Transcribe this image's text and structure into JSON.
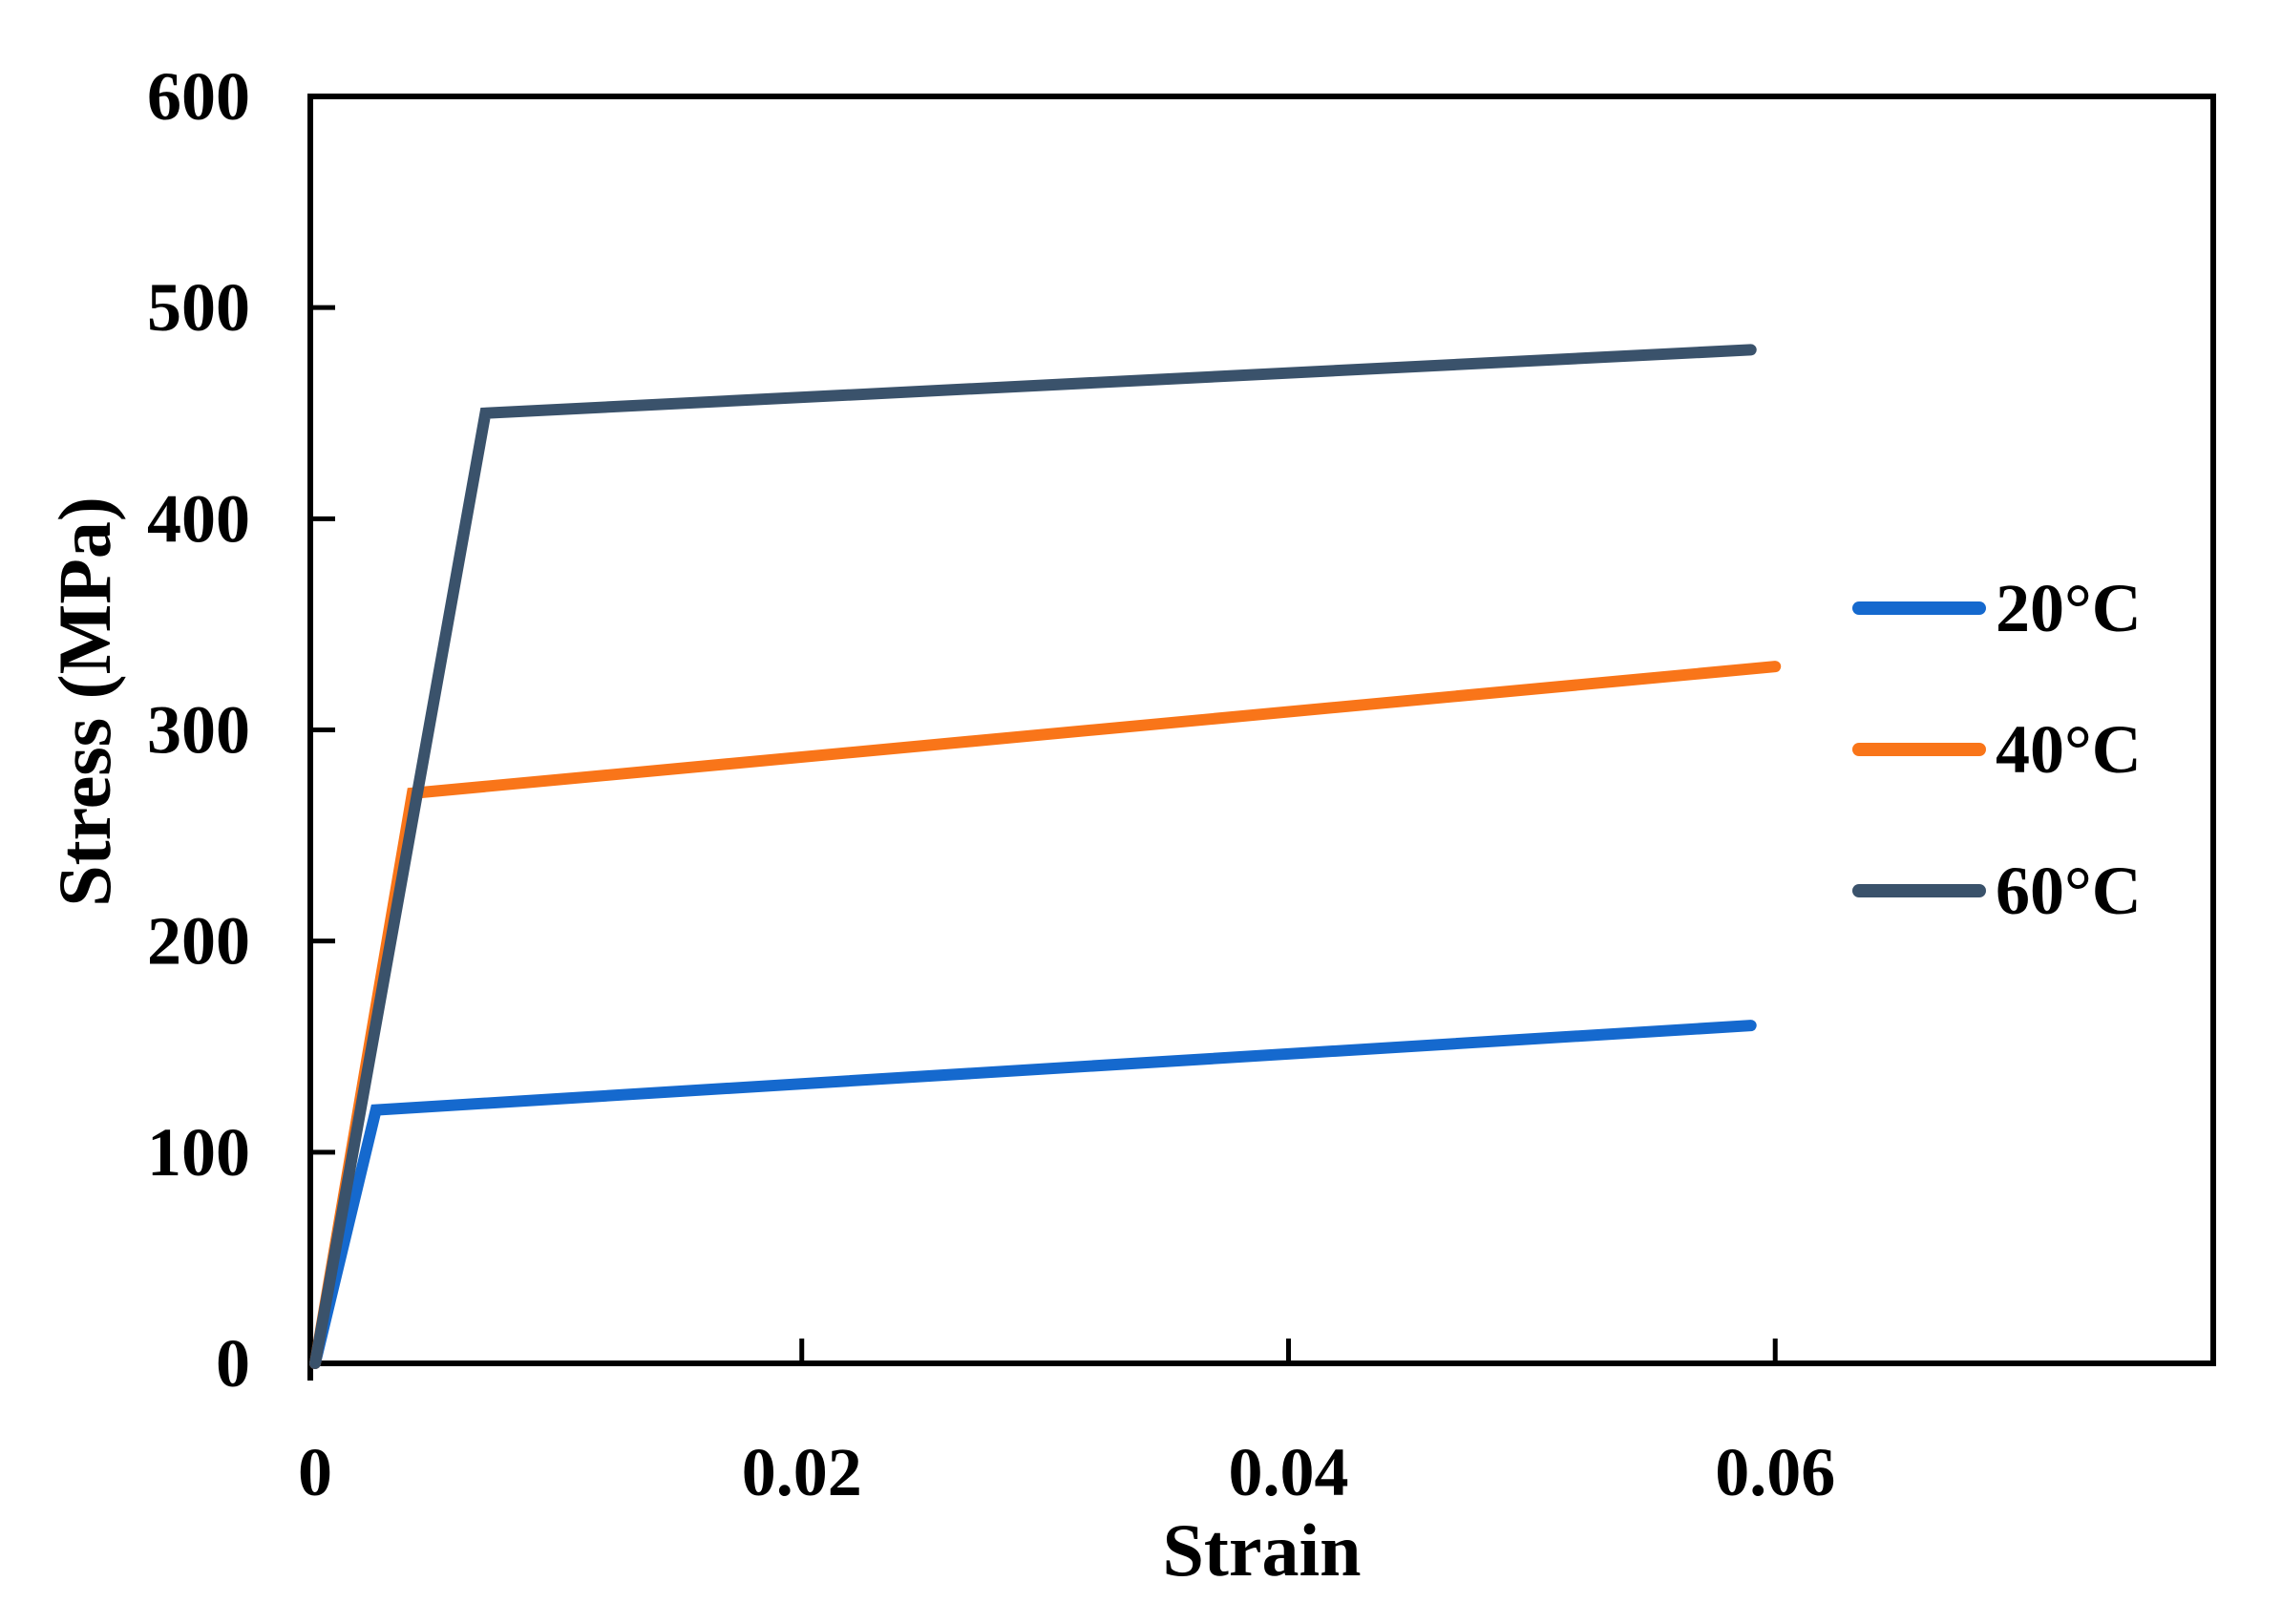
{
  "chart_data": {
    "type": "line",
    "title": "",
    "xlabel": "Strain",
    "ylabel": "Stress (MPa)",
    "xlim": [
      0,
      0.078
    ],
    "ylim": [
      0,
      600
    ],
    "x_ticks": [
      0,
      0.02,
      0.04,
      0.06
    ],
    "x_tick_labels": [
      "0",
      "0.02",
      "0.04",
      "0.06"
    ],
    "y_ticks": [
      0,
      100,
      200,
      300,
      400,
      500,
      600
    ],
    "y_tick_labels": [
      "0",
      "100",
      "200",
      "300",
      "400",
      "500",
      "600"
    ],
    "grid": false,
    "plot_border": "full-box",
    "tick_direction": "inside",
    "legend_position": "inside-middle-right",
    "series": [
      {
        "name": "20°C",
        "color": "#1569CE",
        "points": [
          [
            0,
            0
          ],
          [
            0.0025,
            120
          ],
          [
            0.059,
            160
          ]
        ]
      },
      {
        "name": "40°C",
        "color": "#F97519",
        "points": [
          [
            0,
            0
          ],
          [
            0.004,
            270
          ],
          [
            0.06,
            330
          ]
        ]
      },
      {
        "name": "60°C",
        "color": "#3A526B",
        "points": [
          [
            0,
            0
          ],
          [
            0.007,
            450
          ],
          [
            0.059,
            480
          ]
        ]
      }
    ]
  },
  "colors": {
    "axis": "#000000",
    "background": "#ffffff",
    "text": "#000000"
  }
}
